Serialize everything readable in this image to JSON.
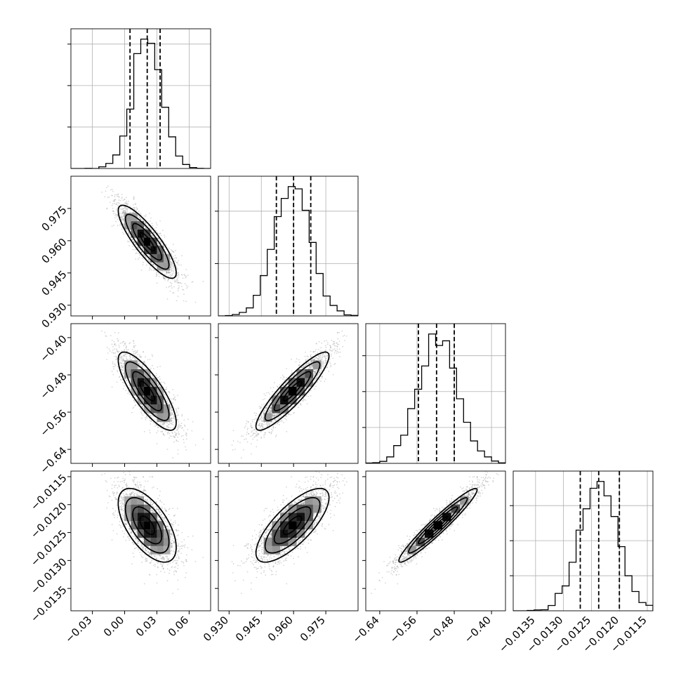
{
  "chart_data": {
    "type": "corner",
    "parameters": [
      {
        "mean": 0.021,
        "sigma": 0.0135,
        "range": [
          -0.05,
          0.08
        ],
        "ticks": [
          -0.03,
          0.0,
          0.03,
          0.06
        ],
        "tick_labels": [
          "−0.03",
          "0.00",
          "0.03",
          "0.06"
        ],
        "quantiles": [
          0.005,
          0.021,
          0.033
        ]
      },
      {
        "mean": 0.9595,
        "sigma": 0.0085,
        "range": [
          0.925,
          0.99
        ],
        "ticks": [
          0.93,
          0.945,
          0.96,
          0.975
        ],
        "tick_labels": [
          "0.930",
          "0.945",
          "0.960",
          "0.975"
        ],
        "quantiles": [
          0.952,
          0.96,
          0.968
        ]
      },
      {
        "mean": -0.515,
        "sigma": 0.042,
        "range": [
          -0.67,
          -0.37
        ],
        "ticks": [
          -0.64,
          -0.56,
          -0.48,
          -0.4
        ],
        "tick_labels": [
          "−0.64",
          "−0.56",
          "−0.48",
          "−0.40"
        ],
        "quantiles": [
          -0.557,
          -0.518,
          -0.48
        ]
      },
      {
        "mean": -0.01237,
        "sigma": 0.00033,
        "range": [
          -0.0139,
          -0.0114
        ],
        "ticks": [
          -0.0135,
          -0.013,
          -0.0125,
          -0.012,
          -0.0115
        ],
        "tick_labels": [
          "−0.0135",
          "−0.0130",
          "−0.0125",
          "−0.0120",
          "−0.0115"
        ],
        "quantiles": [
          -0.0127,
          -0.01237,
          -0.012
        ]
      }
    ],
    "correlations": [
      [
        1.0,
        -0.85,
        -0.8,
        -0.6
      ],
      [
        -0.85,
        1.0,
        0.9,
        0.75
      ],
      [
        -0.8,
        0.9,
        1.0,
        0.96
      ],
      [
        -0.6,
        0.75,
        0.96,
        1.0
      ]
    ],
    "n_samples": 5000,
    "hist_bins": 20,
    "grid": true,
    "colors": {
      "ink": "#000000",
      "grid": "#b0b0b0",
      "scatter": "#8c8c8c"
    }
  }
}
